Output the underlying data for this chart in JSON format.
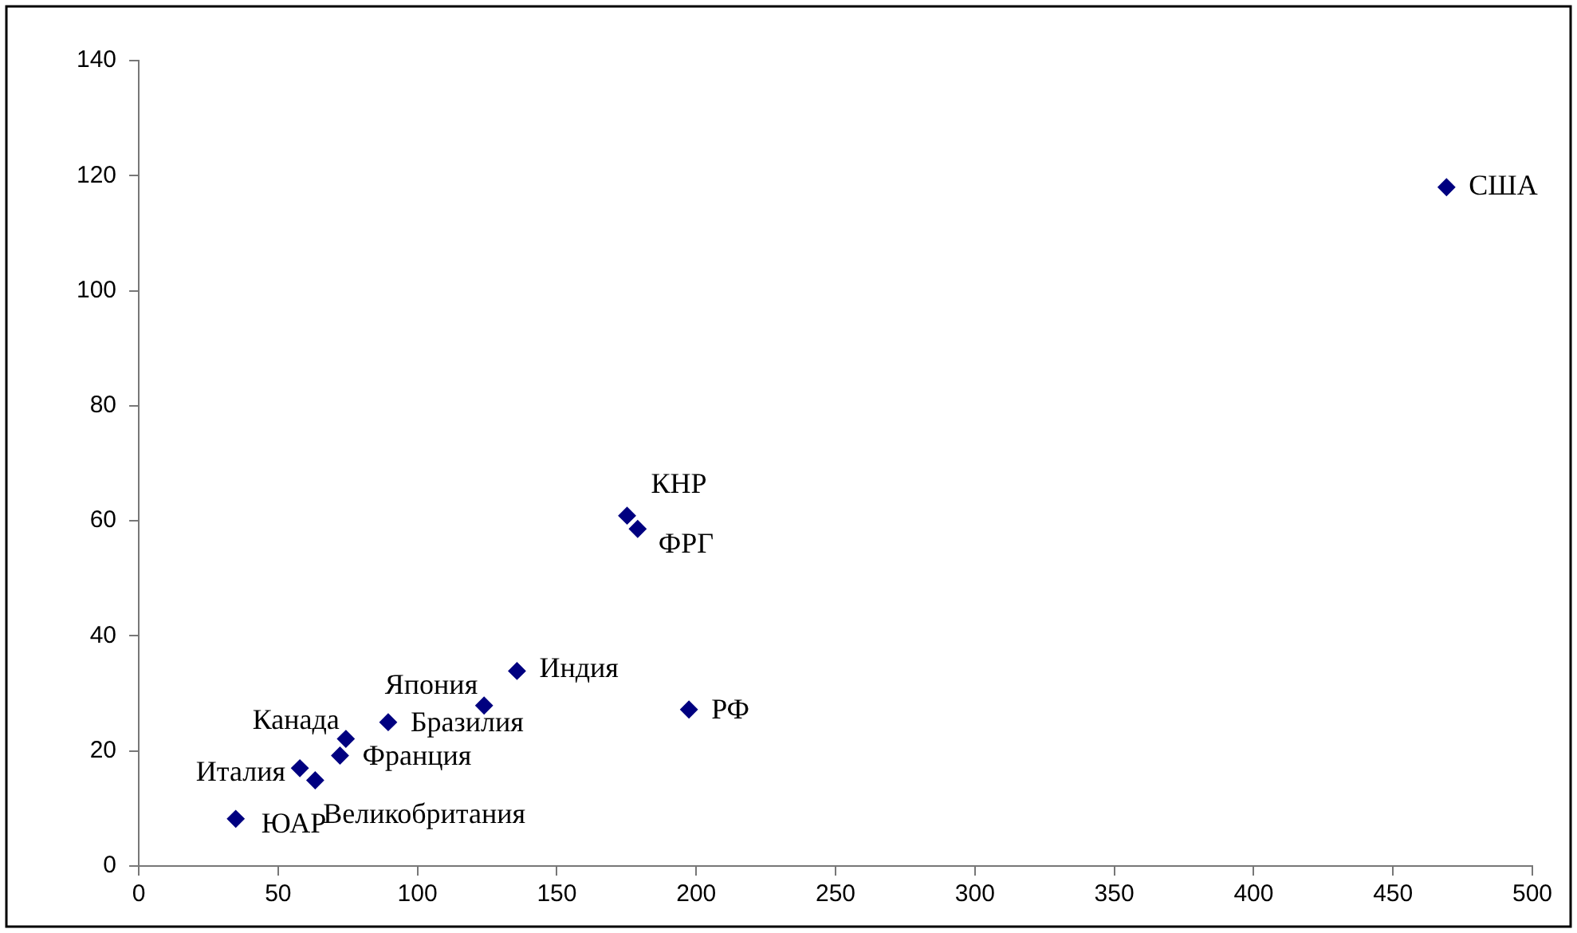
{
  "chart_data": {
    "type": "scatter",
    "marker": "diamond",
    "grid": false,
    "legend": false,
    "xlim": [
      0,
      500
    ],
    "xticks": [
      0,
      50,
      100,
      150,
      200,
      250,
      300,
      350,
      400,
      450,
      500
    ],
    "ylim": [
      0,
      140
    ],
    "yticks": [
      0,
      20,
      40,
      60,
      80,
      100,
      120,
      140
    ],
    "series": [
      {
        "color": "#000080",
        "x": [
          34.8,
          57.8,
          63.3,
          72.2,
          74.3,
          89.5,
          123.9,
          135.7,
          197.4,
          175.2,
          179,
          469.2
        ],
        "values": [
          8.2,
          17,
          14.9,
          19.2,
          22.1,
          25,
          27.9,
          33.9,
          27.2,
          60.9,
          58.6,
          118
        ]
      }
    ],
    "annotations": [
      {
        "text": "ЮАР",
        "x": 34.8,
        "y": 8.2
      },
      {
        "text": "Италия",
        "x": 57.8,
        "y": 17
      },
      {
        "text": "Великобритания",
        "x": 63.3,
        "y": 14.9
      },
      {
        "text": "Франция",
        "x": 72.2,
        "y": 19.2
      },
      {
        "text": "Канада",
        "x": 74.3,
        "y": 22.1
      },
      {
        "text": "Бразилия",
        "x": 89.5,
        "y": 25
      },
      {
        "text": "Япония",
        "x": 123.9,
        "y": 27.9
      },
      {
        "text": "Индия",
        "x": 135.7,
        "y": 33.9
      },
      {
        "text": "РФ",
        "x": 197.4,
        "y": 27.2
      },
      {
        "text": "КНР",
        "x": 175.2,
        "y": 60.9
      },
      {
        "text": "ФРГ",
        "x": 179,
        "y": 58.6
      },
      {
        "text": "США",
        "x": 469.2,
        "y": 118
      }
    ]
  }
}
